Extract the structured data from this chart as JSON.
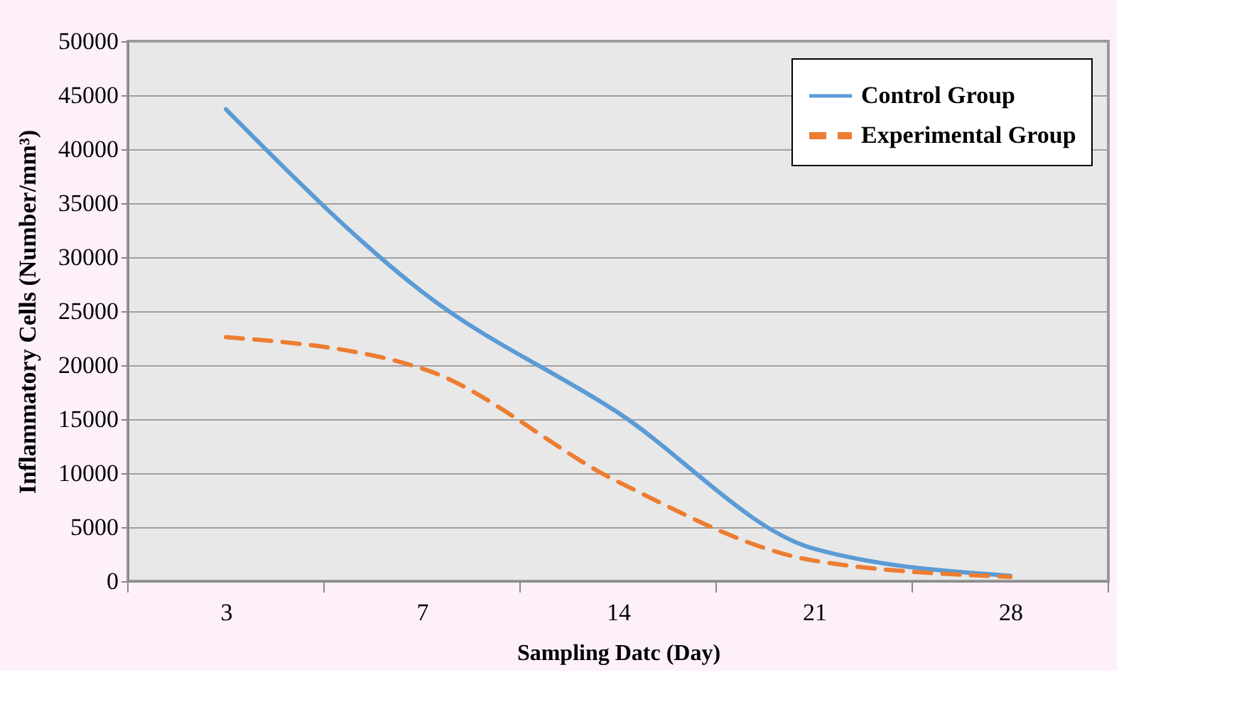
{
  "chart_data": {
    "type": "line",
    "xlabel": "Sampling Datc (Day)",
    "ylabel": "Inflammatory Cells (Number/mm³)",
    "categories": [
      "3",
      "7",
      "14",
      "21",
      "28"
    ],
    "series": [
      {
        "name": "Control Group",
        "color": "#5b9bd5",
        "line_style": "solid",
        "values": [
          43700,
          26800,
          15600,
          3000,
          500
        ]
      },
      {
        "name": "Experimental Group",
        "color": "#ed7d31",
        "line_style": "dashed",
        "values": [
          22600,
          19700,
          9200,
          1900,
          400
        ]
      }
    ],
    "ylim": [
      0,
      50000
    ],
    "yticks": [
      0,
      5000,
      10000,
      15000,
      20000,
      25000,
      30000,
      35000,
      40000,
      45000,
      50000
    ],
    "grid": "y",
    "legend": "top right",
    "marker": "none"
  }
}
